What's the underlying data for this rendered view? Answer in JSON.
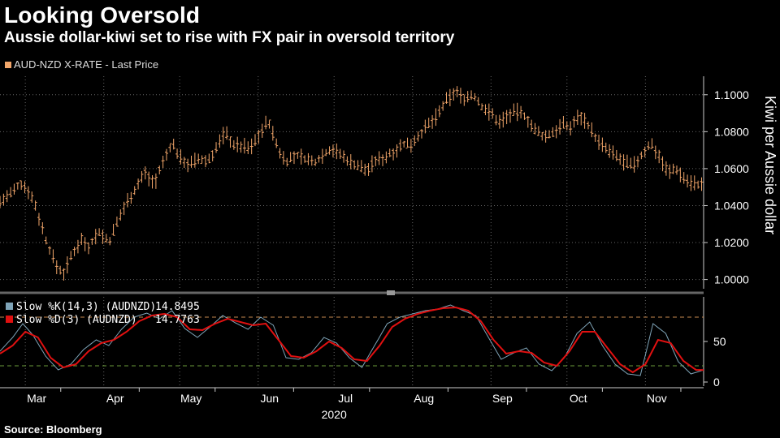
{
  "header": {
    "title": "Looking Oversold",
    "subtitle": "Aussie dollar-kiwi set to rise with FX pair in oversold territory"
  },
  "source": "Source: Bloomberg",
  "colors": {
    "price": "#f2a66a",
    "slow_k": "#7fa4b8",
    "slow_d": "#e01010",
    "grid": "#666666",
    "ref_overbought": "#c98a50",
    "ref_oversold": "#6a9a3a"
  },
  "chart_data": [
    {
      "type": "line",
      "subtype": "ohlc",
      "legend": "AUD-NZD X-RATE - Last Price",
      "ylabel": "Kiwi per Aussie dollar",
      "ylim": [
        0.995,
        1.11
      ],
      "yticks": [
        "1.0000",
        "1.0200",
        "1.0400",
        "1.0600",
        "1.0800",
        "1.1000"
      ],
      "xticks": [
        "Mar",
        "Apr",
        "May",
        "Jun",
        "Jul",
        "Aug",
        "Sep",
        "Oct",
        "Nov"
      ],
      "year_label": "2020",
      "grid": true,
      "legend_position": "top-left",
      "x_range": [
        "2020-02-20",
        "2020-11-24"
      ],
      "anchors": [
        [
          "2020-02-20",
          1.042
        ],
        [
          "2020-02-25",
          1.047
        ],
        [
          "2020-02-28",
          1.052
        ],
        [
          "2020-03-02",
          1.049
        ],
        [
          "2020-03-05",
          1.04
        ],
        [
          "2020-03-09",
          1.022
        ],
        [
          "2020-03-13",
          1.008
        ],
        [
          "2020-03-16",
          1.003
        ],
        [
          "2020-03-19",
          1.012
        ],
        [
          "2020-03-23",
          1.022
        ],
        [
          "2020-03-26",
          1.018
        ],
        [
          "2020-03-30",
          1.026
        ],
        [
          "2020-04-03",
          1.02
        ],
        [
          "2020-04-07",
          1.033
        ],
        [
          "2020-04-10",
          1.042
        ],
        [
          "2020-04-14",
          1.05
        ],
        [
          "2020-04-17",
          1.058
        ],
        [
          "2020-04-21",
          1.052
        ],
        [
          "2020-04-24",
          1.062
        ],
        [
          "2020-04-28",
          1.074
        ],
        [
          "2020-05-01",
          1.066
        ],
        [
          "2020-05-05",
          1.062
        ],
        [
          "2020-05-08",
          1.065
        ],
        [
          "2020-05-12",
          1.064
        ],
        [
          "2020-05-15",
          1.07
        ],
        [
          "2020-05-19",
          1.08
        ],
        [
          "2020-05-22",
          1.073
        ],
        [
          "2020-05-26",
          1.072
        ],
        [
          "2020-05-29",
          1.071
        ],
        [
          "2020-06-02",
          1.08
        ],
        [
          "2020-06-05",
          1.086
        ],
        [
          "2020-06-09",
          1.07
        ],
        [
          "2020-06-12",
          1.064
        ],
        [
          "2020-06-16",
          1.067
        ],
        [
          "2020-06-19",
          1.066
        ],
        [
          "2020-06-23",
          1.063
        ],
        [
          "2020-06-26",
          1.067
        ],
        [
          "2020-06-30",
          1.071
        ],
        [
          "2020-07-03",
          1.068
        ],
        [
          "2020-07-07",
          1.064
        ],
        [
          "2020-07-10",
          1.062
        ],
        [
          "2020-07-14",
          1.059
        ],
        [
          "2020-07-17",
          1.064
        ],
        [
          "2020-07-21",
          1.066
        ],
        [
          "2020-07-24",
          1.069
        ],
        [
          "2020-07-28",
          1.073
        ],
        [
          "2020-07-31",
          1.073
        ],
        [
          "2020-08-04",
          1.079
        ],
        [
          "2020-08-07",
          1.083
        ],
        [
          "2020-08-11",
          1.089
        ],
        [
          "2020-08-14",
          1.096
        ],
        [
          "2020-08-18",
          1.102
        ],
        [
          "2020-08-21",
          1.098
        ],
        [
          "2020-08-25",
          1.1
        ],
        [
          "2020-08-28",
          1.094
        ],
        [
          "2020-09-01",
          1.09
        ],
        [
          "2020-09-04",
          1.085
        ],
        [
          "2020-09-08",
          1.089
        ],
        [
          "2020-09-11",
          1.091
        ],
        [
          "2020-09-15",
          1.088
        ],
        [
          "2020-09-18",
          1.081
        ],
        [
          "2020-09-22",
          1.077
        ],
        [
          "2020-09-25",
          1.079
        ],
        [
          "2020-09-29",
          1.084
        ],
        [
          "2020-10-02",
          1.082
        ],
        [
          "2020-10-06",
          1.089
        ],
        [
          "2020-10-09",
          1.085
        ],
        [
          "2020-10-13",
          1.075
        ],
        [
          "2020-10-16",
          1.071
        ],
        [
          "2020-10-20",
          1.067
        ],
        [
          "2020-10-23",
          1.064
        ],
        [
          "2020-10-27",
          1.061
        ],
        [
          "2020-10-30",
          1.066
        ],
        [
          "2020-11-03",
          1.074
        ],
        [
          "2020-11-06",
          1.068
        ],
        [
          "2020-11-10",
          1.058
        ],
        [
          "2020-11-13",
          1.06
        ],
        [
          "2020-11-17",
          1.054
        ],
        [
          "2020-11-20",
          1.052
        ],
        [
          "2020-11-24",
          1.051
        ]
      ]
    },
    {
      "type": "line",
      "ylim": [
        -5,
        105
      ],
      "yticks": [
        "0",
        "50"
      ],
      "reference_lines": [
        80,
        20
      ],
      "grid": true,
      "series": [
        {
          "name": "Slow %K(14,3) (AUDNZD)",
          "last_value": "14.8495",
          "anchors": [
            [
              "2020-02-20",
              38
            ],
            [
              "2020-02-25",
              55
            ],
            [
              "2020-02-29",
              72
            ],
            [
              "2020-03-04",
              58
            ],
            [
              "2020-03-09",
              32
            ],
            [
              "2020-03-14",
              15
            ],
            [
              "2020-03-19",
              22
            ],
            [
              "2020-03-24",
              40
            ],
            [
              "2020-03-29",
              52
            ],
            [
              "2020-04-03",
              45
            ],
            [
              "2020-04-08",
              65
            ],
            [
              "2020-04-13",
              80
            ],
            [
              "2020-04-18",
              85
            ],
            [
              "2020-04-23",
              78
            ],
            [
              "2020-04-28",
              88
            ],
            [
              "2020-05-03",
              66
            ],
            [
              "2020-05-08",
              55
            ],
            [
              "2020-05-13",
              68
            ],
            [
              "2020-05-18",
              82
            ],
            [
              "2020-05-23",
              73
            ],
            [
              "2020-05-28",
              65
            ],
            [
              "2020-06-02",
              80
            ],
            [
              "2020-06-07",
              70
            ],
            [
              "2020-06-12",
              30
            ],
            [
              "2020-06-17",
              28
            ],
            [
              "2020-06-22",
              36
            ],
            [
              "2020-06-27",
              55
            ],
            [
              "2020-07-02",
              48
            ],
            [
              "2020-07-07",
              30
            ],
            [
              "2020-07-12",
              18
            ],
            [
              "2020-07-17",
              45
            ],
            [
              "2020-07-22",
              72
            ],
            [
              "2020-07-27",
              80
            ],
            [
              "2020-08-01",
              84
            ],
            [
              "2020-08-06",
              88
            ],
            [
              "2020-08-11",
              90
            ],
            [
              "2020-08-16",
              95
            ],
            [
              "2020-08-21",
              88
            ],
            [
              "2020-08-26",
              82
            ],
            [
              "2020-08-31",
              55
            ],
            [
              "2020-09-05",
              28
            ],
            [
              "2020-09-10",
              36
            ],
            [
              "2020-09-15",
              42
            ],
            [
              "2020-09-20",
              22
            ],
            [
              "2020-09-25",
              14
            ],
            [
              "2020-09-30",
              30
            ],
            [
              "2020-10-05",
              60
            ],
            [
              "2020-10-10",
              74
            ],
            [
              "2020-10-15",
              45
            ],
            [
              "2020-10-20",
              22
            ],
            [
              "2020-10-25",
              10
            ],
            [
              "2020-10-30",
              8
            ],
            [
              "2020-11-04",
              72
            ],
            [
              "2020-11-09",
              60
            ],
            [
              "2020-11-14",
              25
            ],
            [
              "2020-11-19",
              10
            ],
            [
              "2020-11-24",
              14.8
            ]
          ]
        },
        {
          "name": "Slow %D(3) (AUDNZD)",
          "last_value": "14.7763",
          "anchors": [
            [
              "2020-02-20",
              35
            ],
            [
              "2020-02-25",
              45
            ],
            [
              "2020-03-01",
              62
            ],
            [
              "2020-03-06",
              55
            ],
            [
              "2020-03-11",
              30
            ],
            [
              "2020-03-16",
              18
            ],
            [
              "2020-03-21",
              22
            ],
            [
              "2020-03-26",
              38
            ],
            [
              "2020-03-31",
              48
            ],
            [
              "2020-04-05",
              52
            ],
            [
              "2020-04-10",
              62
            ],
            [
              "2020-04-15",
              75
            ],
            [
              "2020-04-20",
              82
            ],
            [
              "2020-04-25",
              84
            ],
            [
              "2020-04-30",
              80
            ],
            [
              "2020-05-05",
              65
            ],
            [
              "2020-05-10",
              64
            ],
            [
              "2020-05-15",
              72
            ],
            [
              "2020-05-20",
              78
            ],
            [
              "2020-05-25",
              74
            ],
            [
              "2020-05-30",
              70
            ],
            [
              "2020-06-04",
              72
            ],
            [
              "2020-06-09",
              52
            ],
            [
              "2020-06-14",
              32
            ],
            [
              "2020-06-19",
              30
            ],
            [
              "2020-06-24",
              38
            ],
            [
              "2020-06-29",
              50
            ],
            [
              "2020-07-04",
              42
            ],
            [
              "2020-07-09",
              28
            ],
            [
              "2020-07-14",
              26
            ],
            [
              "2020-07-19",
              45
            ],
            [
              "2020-07-24",
              68
            ],
            [
              "2020-07-29",
              78
            ],
            [
              "2020-08-03",
              84
            ],
            [
              "2020-08-08",
              88
            ],
            [
              "2020-08-13",
              91
            ],
            [
              "2020-08-18",
              92
            ],
            [
              "2020-08-23",
              88
            ],
            [
              "2020-08-28",
              75
            ],
            [
              "2020-09-02",
              52
            ],
            [
              "2020-09-07",
              35
            ],
            [
              "2020-09-12",
              38
            ],
            [
              "2020-09-17",
              36
            ],
            [
              "2020-09-22",
              24
            ],
            [
              "2020-09-27",
              20
            ],
            [
              "2020-10-02",
              38
            ],
            [
              "2020-10-07",
              62
            ],
            [
              "2020-10-12",
              62
            ],
            [
              "2020-10-17",
              42
            ],
            [
              "2020-10-22",
              22
            ],
            [
              "2020-10-27",
              12
            ],
            [
              "2020-11-01",
              22
            ],
            [
              "2020-11-06",
              52
            ],
            [
              "2020-11-11",
              48
            ],
            [
              "2020-11-16",
              26
            ],
            [
              "2020-11-21",
              15
            ],
            [
              "2020-11-24",
              14.8
            ]
          ]
        }
      ]
    }
  ]
}
